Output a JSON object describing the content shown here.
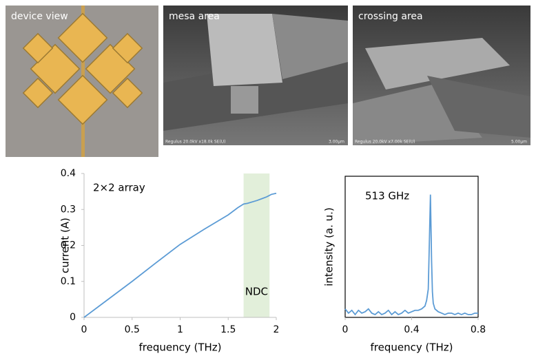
{
  "panels": [
    {
      "label": "device view"
    },
    {
      "label": "mesa area",
      "caption": "Regulus 20.0kV x18.0k SE(U)",
      "scale": "3.00μm"
    },
    {
      "label": "crossing area",
      "caption": "Regulus 20.0kV x7.00k SE(U)",
      "scale": "5.00μm"
    }
  ],
  "chart_data": [
    {
      "type": "line",
      "annotation": "2×2 array",
      "xlabel": "frequency (THz)",
      "ylabel": "current (A)",
      "x": [
        0,
        0.25,
        0.5,
        0.75,
        1,
        1.25,
        1.5,
        1.6,
        1.66,
        1.7,
        1.8,
        1.9,
        1.95,
        2
      ],
      "values": [
        0,
        0.05,
        0.1,
        0.152,
        0.203,
        0.245,
        0.285,
        0.305,
        0.315,
        0.317,
        0.325,
        0.335,
        0.342,
        0.345
      ],
      "color": "#5b9bd5",
      "xlim": [
        0,
        2
      ],
      "ylim": [
        0,
        0.4
      ],
      "xticks": [
        0,
        0.5,
        1,
        1.5,
        2
      ],
      "yticks": [
        0,
        0.1,
        0.2,
        0.3,
        0.4
      ],
      "frame": false,
      "highlight": {
        "x": [
          1.66,
          1.93
        ],
        "label": "NDC",
        "color": "#e2efda"
      }
    },
    {
      "type": "line",
      "annotation": "513 GHz",
      "xlabel": "frequency (THz)",
      "ylabel": "intensity (a. u.)",
      "x": [
        0,
        0.02,
        0.04,
        0.06,
        0.08,
        0.1,
        0.12,
        0.14,
        0.16,
        0.18,
        0.2,
        0.22,
        0.24,
        0.26,
        0.28,
        0.3,
        0.32,
        0.34,
        0.36,
        0.38,
        0.4,
        0.42,
        0.44,
        0.46,
        0.48,
        0.49,
        0.5,
        0.505,
        0.513,
        0.52,
        0.525,
        0.53,
        0.54,
        0.56,
        0.58,
        0.6,
        0.62,
        0.64,
        0.66,
        0.68,
        0.7,
        0.72,
        0.74,
        0.76,
        0.78,
        0.8
      ],
      "values": [
        0.06,
        0.03,
        0.05,
        0.02,
        0.05,
        0.03,
        0.04,
        0.06,
        0.03,
        0.02,
        0.04,
        0.02,
        0.03,
        0.05,
        0.02,
        0.04,
        0.02,
        0.03,
        0.05,
        0.03,
        0.04,
        0.05,
        0.05,
        0.06,
        0.08,
        0.12,
        0.2,
        0.45,
        0.87,
        0.4,
        0.18,
        0.1,
        0.06,
        0.04,
        0.03,
        0.02,
        0.03,
        0.03,
        0.02,
        0.03,
        0.02,
        0.03,
        0.02,
        0.02,
        0.03,
        0.03
      ],
      "color": "#5b9bd5",
      "xlim": [
        0,
        0.8
      ],
      "ylim": [
        0,
        1
      ],
      "xticks": [
        0,
        0.4,
        0.8
      ],
      "frame": true
    }
  ]
}
